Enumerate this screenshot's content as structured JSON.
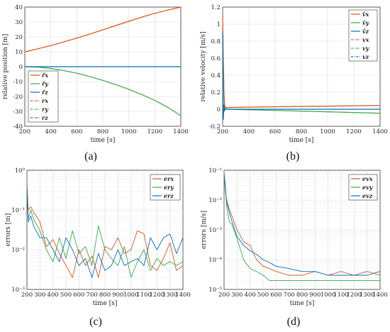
{
  "figure": {
    "colors": {
      "orange": "#D95319",
      "green": "#3BAA4A",
      "blue": "#0072BD"
    }
  },
  "chart_data": [
    {
      "id": "a",
      "panel_label": "(a)",
      "type": "line",
      "xlabel": "time [s]",
      "ylabel": "relative position [m]",
      "xlim": [
        200,
        1400
      ],
      "ylim": [
        -40,
        40
      ],
      "yscale": "linear",
      "xticks": [
        "200",
        "400",
        "600",
        "800",
        "1000",
        "1200",
        "1400"
      ],
      "yticks": [
        "-40",
        "-30",
        "-20",
        "-10",
        "0",
        "10",
        "20",
        "30",
        "40"
      ],
      "grid": true,
      "legend_position": "bottom-left",
      "x": [
        200,
        300,
        400,
        500,
        600,
        700,
        800,
        900,
        1000,
        1100,
        1200,
        1300,
        1400
      ],
      "series": [
        {
          "name": "r̂x",
          "color": "#D95319",
          "dash": "solid",
          "values": [
            10,
            12,
            14.2,
            16.6,
            19.2,
            21.9,
            24.7,
            27.6,
            30.5,
            33.3,
            35.8,
            38.0,
            40
          ]
        },
        {
          "name": "r̂y",
          "color": "#3BAA4A",
          "dash": "solid",
          "values": [
            0,
            -0.3,
            -1.2,
            -2.6,
            -4.4,
            -6.6,
            -9.2,
            -12.0,
            -15.2,
            -18.7,
            -22.6,
            -27.3,
            -33
          ]
        },
        {
          "name": "r̂z",
          "color": "#0072BD",
          "dash": "solid",
          "values": [
            0,
            0,
            0,
            0,
            0,
            0,
            0,
            0,
            0,
            0,
            0,
            0,
            0
          ]
        },
        {
          "name": "rx",
          "color": "#D95319",
          "dash": "dashdot",
          "values": [
            10,
            12,
            14.2,
            16.6,
            19.2,
            21.9,
            24.7,
            27.6,
            30.5,
            33.3,
            35.8,
            38.0,
            40
          ]
        },
        {
          "name": "ry",
          "color": "#3BAA4A",
          "dash": "dashdot",
          "values": [
            0,
            -0.3,
            -1.2,
            -2.6,
            -4.4,
            -6.6,
            -9.2,
            -12.0,
            -15.2,
            -18.7,
            -22.6,
            -27.3,
            -33
          ]
        },
        {
          "name": "rz",
          "color": "#0072BD",
          "dash": "dashdot",
          "values": [
            0,
            0,
            0,
            0,
            0,
            0,
            0,
            0,
            0,
            0,
            0,
            0,
            0
          ]
        }
      ]
    },
    {
      "id": "b",
      "panel_label": "(b)",
      "type": "line",
      "xlabel": "time [s]",
      "ylabel": "relative velocity [m/s]",
      "xlim": [
        200,
        1400
      ],
      "ylim": [
        -0.2,
        1.2
      ],
      "yscale": "linear",
      "xticks": [
        "200",
        "400",
        "600",
        "800",
        "1000",
        "1200",
        "1400"
      ],
      "yticks": [
        "-0.2",
        "0",
        "0.2",
        "0.4",
        "0.6",
        "0.8",
        "1",
        "1.2"
      ],
      "grid": true,
      "legend_position": "top-right",
      "x": [
        200,
        205,
        210,
        215,
        220,
        230,
        250,
        300,
        400,
        600,
        800,
        1000,
        1200,
        1400
      ],
      "series": [
        {
          "name": "v̂x",
          "color": "#D95319",
          "dash": "solid",
          "values": [
            1.1,
            0.6,
            0.2,
            0.05,
            0.02,
            0.02,
            0.021,
            0.022,
            0.025,
            0.029,
            0.033,
            0.037,
            0.041,
            0.044
          ]
        },
        {
          "name": "v̂y",
          "color": "#3BAA4A",
          "dash": "solid",
          "values": [
            0.5,
            -0.05,
            0.02,
            0,
            0,
            0,
            -0.001,
            -0.003,
            -0.007,
            -0.014,
            -0.022,
            -0.03,
            -0.038,
            -0.047
          ]
        },
        {
          "name": "v̂z",
          "color": "#0072BD",
          "dash": "solid",
          "values": [
            0.9,
            -0.12,
            0.05,
            -0.02,
            0.01,
            0,
            0,
            0,
            0,
            0,
            0,
            0,
            0,
            0
          ]
        },
        {
          "name": "vx",
          "color": "#D95319",
          "dash": "dashdot",
          "values": [
            0.02,
            0.02,
            0.02,
            0.02,
            0.02,
            0.02,
            0.021,
            0.022,
            0.025,
            0.029,
            0.033,
            0.037,
            0.041,
            0.044
          ]
        },
        {
          "name": "vy",
          "color": "#3BAA4A",
          "dash": "dashdot",
          "values": [
            0,
            0,
            0,
            0,
            0,
            0,
            -0.001,
            -0.003,
            -0.007,
            -0.014,
            -0.022,
            -0.03,
            -0.038,
            -0.047
          ]
        },
        {
          "name": "vz",
          "color": "#0072BD",
          "dash": "dashdot",
          "values": [
            0,
            0,
            0,
            0,
            0,
            0,
            0,
            0,
            0,
            0,
            0,
            0,
            0,
            0
          ]
        }
      ]
    },
    {
      "id": "c",
      "panel_label": "(c)",
      "type": "line",
      "xlabel": "time [s]",
      "ylabel": "errors [m]",
      "xlim": [
        200,
        1400
      ],
      "ylim": [
        0.001,
        1
      ],
      "yscale": "log",
      "xticks": [
        "200",
        "300",
        "400",
        "500",
        "600",
        "700",
        "800",
        "900",
        "1000",
        "1100",
        "1200",
        "1300",
        "1400"
      ],
      "yticks": [
        "10⁻³",
        "10⁻²",
        "10⁻¹",
        "10⁰"
      ],
      "grid": true,
      "legend_position": "top-right",
      "x": [
        200,
        210,
        230,
        250,
        300,
        350,
        400,
        450,
        500,
        550,
        600,
        650,
        700,
        750,
        800,
        850,
        900,
        950,
        1000,
        1050,
        1100,
        1150,
        1200,
        1250,
        1300,
        1350,
        1400
      ],
      "series": [
        {
          "name": "erx",
          "color": "#D95319",
          "values": [
            0.5,
            0.1,
            0.12,
            0.09,
            0.05,
            0.012,
            0.018,
            0.008,
            0.004,
            0.002,
            0.01,
            0.004,
            0.007,
            0.002,
            0.012,
            0.01,
            0.02,
            0.008,
            0.01,
            0.03,
            0.025,
            0.004,
            0.003,
            0.006,
            0.015,
            0.003,
            0.004
          ]
        },
        {
          "name": "ery",
          "color": "#3BAA4A",
          "values": [
            0.4,
            0.06,
            0.1,
            0.06,
            0.03,
            0.01,
            0.005,
            0.02,
            0.006,
            0.03,
            0.008,
            0.012,
            0.004,
            0.04,
            0.01,
            0.006,
            0.004,
            0.012,
            0.002,
            0.005,
            0.01,
            0.003,
            0.006,
            0.004,
            0.005,
            0.004,
            0.005
          ]
        },
        {
          "name": "erz",
          "color": "#0072BD",
          "values": [
            0.3,
            0.05,
            0.07,
            0.04,
            0.02,
            0.02,
            0.01,
            0.005,
            0.02,
            0.01,
            0.004,
            0.006,
            0.002,
            0.008,
            0.003,
            0.004,
            0.01,
            0.004,
            0.005,
            0.006,
            0.004,
            0.02,
            0.01,
            0.02,
            0.025,
            0.008,
            0.02
          ]
        }
      ]
    },
    {
      "id": "d",
      "panel_label": "(d)",
      "type": "line",
      "xlabel": "time [s]",
      "ylabel": "errors [m/s]",
      "xlim": [
        200,
        1400
      ],
      "ylim": [
        1e-05,
        0.1
      ],
      "yscale": "log",
      "xticks": [
        "200",
        "300",
        "400",
        "500",
        "600",
        "700",
        "800",
        "900",
        "1000",
        "1100",
        "1200",
        "1300",
        "1400"
      ],
      "yticks": [
        "10⁻⁵",
        "10⁻⁴",
        "10⁻³",
        "10⁻²",
        "10⁻¹"
      ],
      "grid": true,
      "legend_position": "top-right",
      "x": [
        200,
        210,
        220,
        240,
        260,
        300,
        350,
        400,
        450,
        500,
        550,
        600,
        700,
        800,
        900,
        1000,
        1100,
        1200,
        1300,
        1400
      ],
      "series": [
        {
          "name": "evx",
          "color": "#D95319",
          "values": [
            0.08,
            0.02,
            0.01,
            0.005,
            0.003,
            0.001,
            0.0004,
            0.0003,
            0.0001,
            6e-05,
            5e-05,
            4e-05,
            3e-05,
            3e-05,
            4e-05,
            3e-05,
            4e-05,
            3e-05,
            4e-05,
            3e-05
          ]
        },
        {
          "name": "evy",
          "color": "#3BAA4A",
          "values": [
            0.09,
            0.03,
            0.006,
            0.002,
            0.0015,
            0.0005,
            0.0001,
            5e-05,
            4e-05,
            3e-05,
            2e-05,
            2e-05,
            2e-05,
            2e-05,
            2e-05,
            2e-05,
            2e-05,
            2e-05,
            2e-05,
            2e-05
          ]
        },
        {
          "name": "evz",
          "color": "#0072BD",
          "values": [
            0.07,
            0.025,
            0.008,
            0.004,
            0.002,
            0.0006,
            0.0003,
            0.0002,
            0.00015,
            0.0001,
            8e-05,
            6e-05,
            5e-05,
            4e-05,
            4e-05,
            3e-05,
            3e-05,
            3e-05,
            3e-05,
            4e-05
          ]
        }
      ]
    }
  ]
}
